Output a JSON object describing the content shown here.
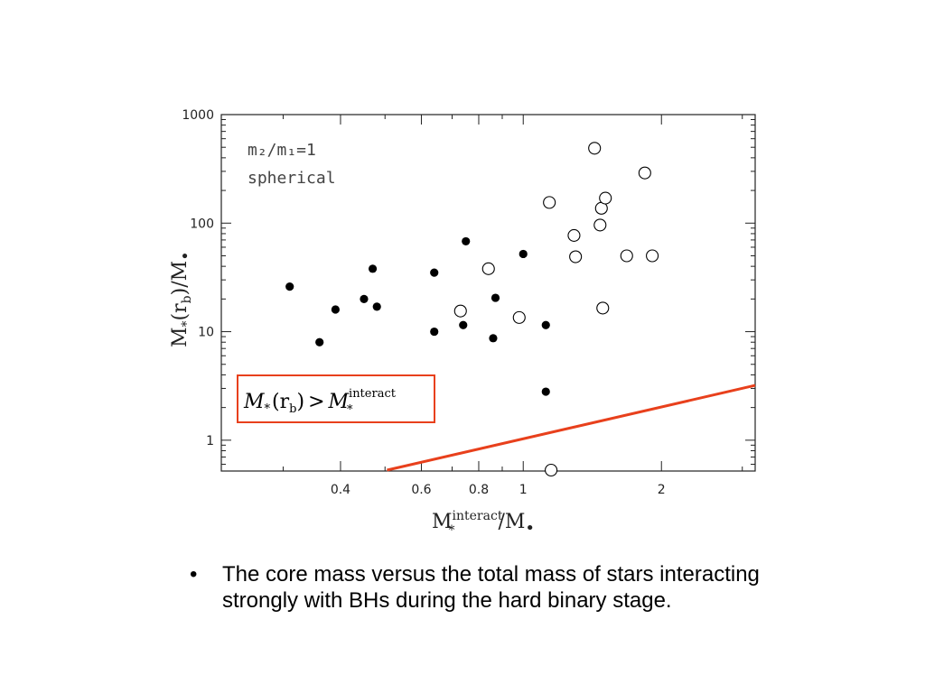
{
  "chart_data": {
    "type": "scatter",
    "title": "",
    "xlabel": {
      "base": "M",
      "sub": "*",
      "sup": "interact",
      "tail": "/M",
      "bh": "•"
    },
    "ylabel": {
      "pre": "M",
      "sub": "*",
      "mid": "(r",
      "msub": "b",
      "tail": ")/M",
      "bh": "•"
    },
    "x_scale": "log",
    "y_scale": "log",
    "xlim": [
      0.22,
      3.2
    ],
    "ylim": [
      0.52,
      1000
    ],
    "x_ticks": [
      {
        "v": 0.4,
        "label": "0.4"
      },
      {
        "v": 0.6,
        "label": "0.6"
      },
      {
        "v": 0.8,
        "label": "0.8"
      },
      {
        "v": 1,
        "label": "1"
      },
      {
        "v": 2,
        "label": "2"
      }
    ],
    "y_ticks": [
      {
        "v": 1,
        "label": "1"
      },
      {
        "v": 10,
        "label": "10"
      },
      {
        "v": 100,
        "label": "100"
      },
      {
        "v": 1000,
        "label": "1000"
      }
    ],
    "annotation_lines": [
      "m₂/m₁=1",
      "spherical"
    ],
    "series": [
      {
        "marker": "filled",
        "points": [
          [
            0.31,
            26
          ],
          [
            0.36,
            8
          ],
          [
            0.39,
            16
          ],
          [
            0.45,
            20
          ],
          [
            0.47,
            38
          ],
          [
            0.48,
            17
          ],
          [
            0.64,
            35
          ],
          [
            0.64,
            10
          ],
          [
            0.74,
            11.5
          ],
          [
            0.75,
            68
          ],
          [
            0.86,
            8.7
          ],
          [
            0.87,
            20.5
          ],
          [
            1.0,
            52
          ],
          [
            1.12,
            11.5
          ],
          [
            1.12,
            2.8
          ]
        ]
      },
      {
        "marker": "open",
        "points": [
          [
            0.73,
            15.5
          ],
          [
            0.84,
            38
          ],
          [
            0.98,
            13.5
          ],
          [
            1.14,
            155
          ],
          [
            1.15,
            0.53
          ],
          [
            1.29,
            77
          ],
          [
            1.3,
            49
          ],
          [
            1.43,
            490
          ],
          [
            1.47,
            96
          ],
          [
            1.48,
            137
          ],
          [
            1.49,
            16.5
          ],
          [
            1.51,
            170
          ],
          [
            1.68,
            50
          ],
          [
            1.84,
            290
          ],
          [
            1.91,
            50
          ]
        ]
      }
    ],
    "lines": [
      {
        "name": "",
        "color": "#e8401c",
        "points": [
          [
            0.505,
            0.53
          ],
          [
            3.2,
            3.2
          ]
        ]
      }
    ]
  },
  "legend_box": {
    "border_color": "#e8401c",
    "lhs_symbol": "M",
    "lhs_sub": "*",
    "lhs_paren_open": "(r",
    "lhs_paren_sub": "b",
    "lhs_paren_close": ")",
    "relation": ">",
    "rhs_symbol": "M",
    "rhs_sub": "*",
    "rhs_sup": "interact"
  },
  "caption": {
    "bullet": "•",
    "text": "The core mass versus the total mass of stars interacting strongly with BHs during the hard binary stage."
  }
}
